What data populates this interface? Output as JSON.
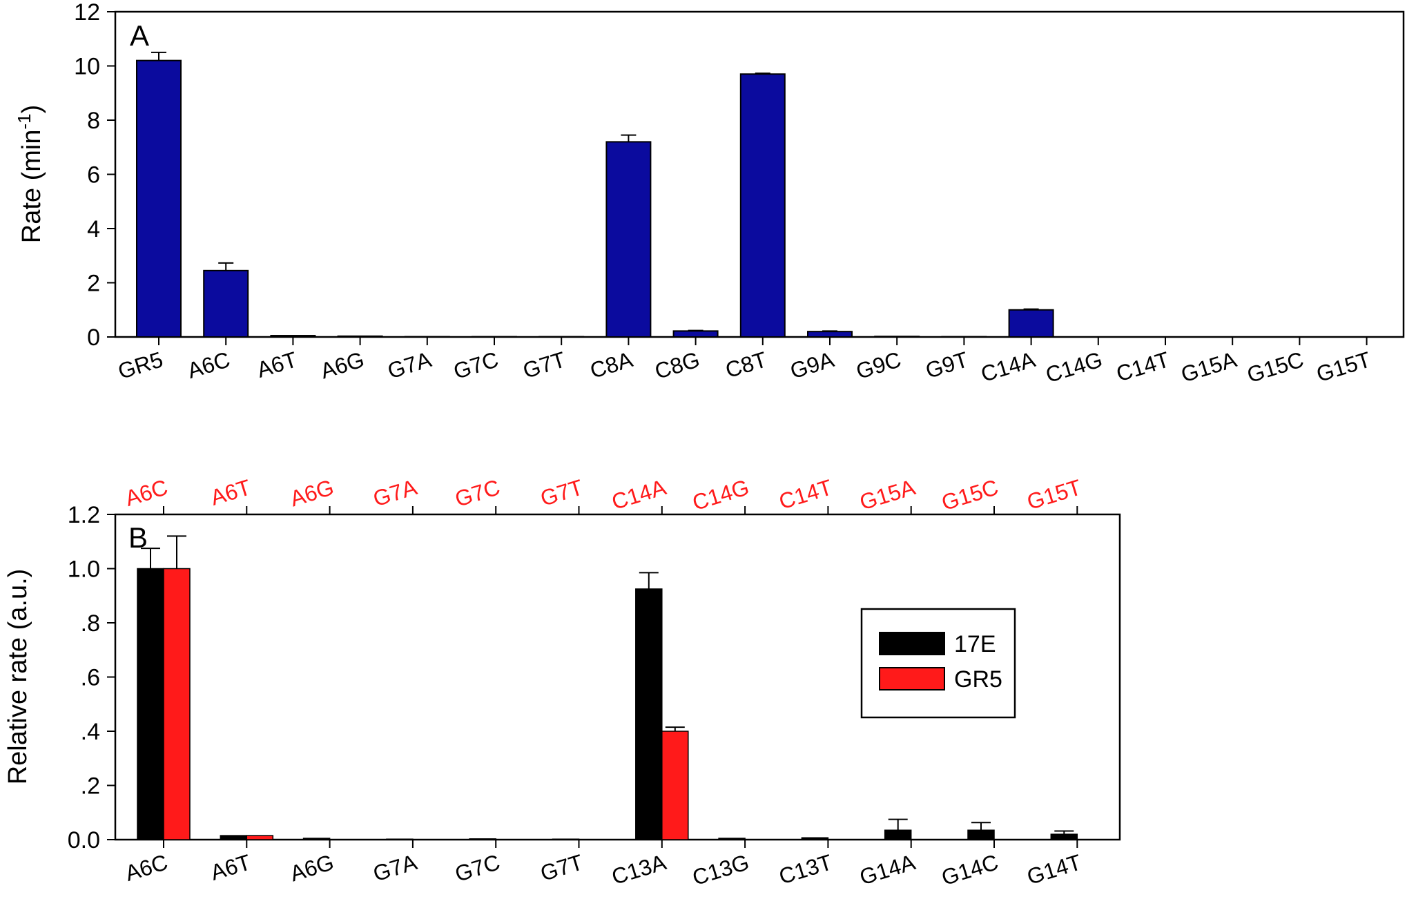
{
  "chart_data": [
    {
      "type": "bar",
      "panel_label": "A",
      "ylabel": "Rate (min",
      "ylabel_sup": "-1",
      "ylabel_end": ")",
      "ylim": [
        0,
        12
      ],
      "yticks": [
        "0",
        "2",
        "4",
        "6",
        "8",
        "10",
        "12"
      ],
      "categories": [
        "GR5",
        "A6C",
        "A6T",
        "A6G",
        "G7A",
        "G7C",
        "G7T",
        "C8A",
        "C8G",
        "C8T",
        "G9A",
        "G9C",
        "G9T",
        "C14A",
        "C14G",
        "C14T",
        "G15A",
        "G15C",
        "G15T"
      ],
      "series": [
        {
          "color": "#0b0b9e",
          "values": [
            10.2,
            2.45,
            0.05,
            0.03,
            0.01,
            0.01,
            0.01,
            7.2,
            0.22,
            9.7,
            0.2,
            0.02,
            0.01,
            1.0,
            0.0,
            0.0,
            0.0,
            0.0,
            0.0
          ],
          "errors": [
            0.3,
            0.28,
            0.0,
            0.0,
            0.0,
            0.0,
            0.0,
            0.25,
            0.02,
            0.03,
            0.02,
            0.0,
            0.0,
            0.03,
            0.0,
            0.0,
            0.0,
            0.0,
            0.0
          ]
        }
      ],
      "legend": "none",
      "grid": false
    },
    {
      "type": "bar",
      "panel_label": "B",
      "ylabel": "Relative rate (a.u.)",
      "ylim": [
        0,
        1.2
      ],
      "yticks": [
        "0.0",
        ".2",
        ".4",
        ".6",
        ".8",
        "1.0",
        "1.2"
      ],
      "categories": [
        "A6C",
        "A6T",
        "A6G",
        "G7A",
        "G7C",
        "G7T",
        "C13A",
        "C13G",
        "C13T",
        "G14A",
        "G14C",
        "G14T"
      ],
      "top_categories": [
        "A6C",
        "A6T",
        "A6G",
        "G7A",
        "G7C",
        "G7T",
        "C14A",
        "C14G",
        "C14T",
        "G15A",
        "G15C",
        "G15T"
      ],
      "top_label_color": "#ff1a1a",
      "series": [
        {
          "name": "17E",
          "color": "#000000",
          "values": [
            1.0,
            0.015,
            0.005,
            0.002,
            0.003,
            0.002,
            0.925,
            0.005,
            0.007,
            0.035,
            0.035,
            0.02
          ],
          "errors": [
            0.075,
            0.0,
            0.0,
            0.0,
            0.0,
            0.0,
            0.06,
            0.0,
            0.0,
            0.04,
            0.028,
            0.012
          ]
        },
        {
          "name": "GR5",
          "color": "#ff1a1a",
          "values": [
            1.0,
            0.015,
            0.0,
            0.0,
            0.0,
            0.0,
            0.4,
            0.0,
            0.0,
            0.0,
            0.0,
            0.0
          ],
          "errors": [
            0.12,
            0.0,
            0.0,
            0.0,
            0.0,
            0.0,
            0.015,
            0.0,
            0.0,
            0.0,
            0.0,
            0.0
          ]
        }
      ],
      "legend": "right",
      "grid": false
    }
  ]
}
